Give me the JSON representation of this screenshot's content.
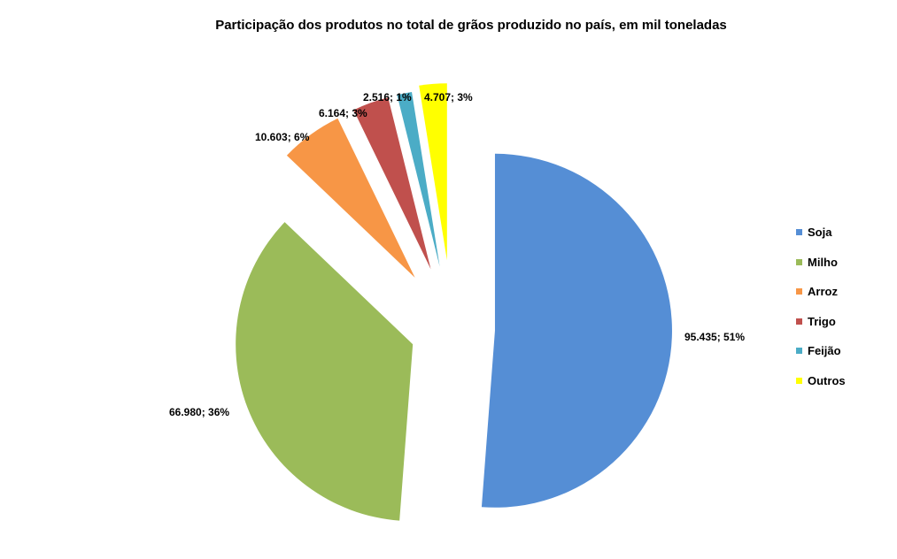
{
  "chart_data": {
    "type": "pie",
    "title": "Participação dos produtos no total de grãos produzido no país, em mil toneladas",
    "legend_position": "right",
    "slices": [
      {
        "name": "Soja",
        "value": 95435,
        "percent": 51,
        "label": "95.435; 51%",
        "color": "#558ED5"
      },
      {
        "name": "Milho",
        "value": 66980,
        "percent": 36,
        "label": "66.980; 36%",
        "color": "#9BBB59"
      },
      {
        "name": "Arroz",
        "value": 10603,
        "percent": 6,
        "label": "10.603; 6%",
        "color": "#F79646"
      },
      {
        "name": "Trigo",
        "value": 6164,
        "percent": 3,
        "label": "6.164; 3%",
        "color": "#C0504D"
      },
      {
        "name": "Feijão",
        "value": 2516,
        "percent": 1,
        "label": "2.516; 1%",
        "color": "#4BACC6"
      },
      {
        "name": "Outros",
        "value": 4707,
        "percent": 3,
        "label": "4.707; 3%",
        "color": "#FFFF00"
      }
    ]
  }
}
